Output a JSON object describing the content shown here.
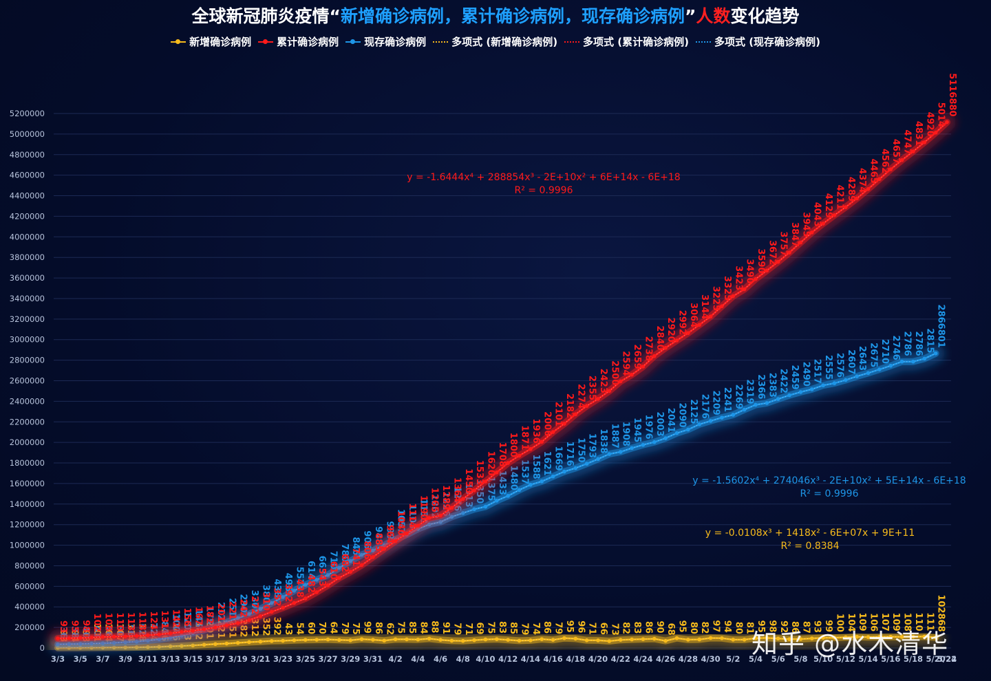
{
  "chart_data": {
    "type": "line",
    "title": {
      "prefix": "全球新冠肺炎疫情“",
      "blue_part": "新增确诊病例，累计确诊病例，现存确诊病例",
      "suffix_quote": "”",
      "red_part": "人数",
      "end": "变化趋势"
    },
    "colors": {
      "new_cases": "#f7bb1c",
      "cumulative": "#ff1a1a",
      "active": "#1e96e8",
      "grid": "#1c2a55",
      "axis_text": "#b8c4dc",
      "background": "#030b26"
    },
    "legend": [
      {
        "label": "新增确诊病例",
        "series": "new",
        "style": "line-marker"
      },
      {
        "label": "累计确诊病例",
        "series": "cumulative",
        "style": "line-marker"
      },
      {
        "label": "现存确诊病例",
        "series": "active",
        "style": "line-marker"
      },
      {
        "label": "多项式 (新增确诊病例)",
        "series": "new",
        "style": "dotted"
      },
      {
        "label": "多项式 (累计确诊病例)",
        "series": "cumulative",
        "style": "dotted"
      },
      {
        "label": "多项式 (现存确诊病例)",
        "series": "active",
        "style": "dotted"
      }
    ],
    "y_axis": {
      "min": 0,
      "max": 5200000,
      "step": 200000,
      "ticks": [
        "0",
        "200000",
        "400000",
        "600000",
        "800000",
        "1000000",
        "1200000",
        "1400000",
        "1600000",
        "1800000",
        "2000000",
        "2200000",
        "2400000",
        "2600000",
        "2800000",
        "3000000",
        "3200000",
        "3400000",
        "3600000",
        "3800000",
        "4000000",
        "4200000",
        "4400000",
        "4600000",
        "4800000",
        "5000000",
        "5200000"
      ]
    },
    "x_axis": {
      "start_date": "3/3",
      "tick_labels": [
        "3/3",
        "3/5",
        "3/7",
        "3/9",
        "3/11",
        "3/13",
        "3/15",
        "3/17",
        "3/19",
        "3/21",
        "3/23",
        "3/25",
        "3/27",
        "3/29",
        "3/31",
        "4/2",
        "4/4",
        "4/6",
        "4/8",
        "4/10",
        "4/12",
        "4/14",
        "4/16",
        "4/18",
        "4/20",
        "4/22",
        "4/24",
        "4/26",
        "4/28",
        "4/30",
        "5/2",
        "5/4",
        "5/6",
        "5/8",
        "5/10",
        "5/12",
        "5/14",
        "5/16",
        "5/18",
        "5/20",
        "5/22",
        "5/24"
      ]
    },
    "series": [
      {
        "name": "累计确诊病例",
        "key": "cumulative",
        "values": [
          93000,
          95000,
          98000,
          102000,
          108000,
          110000,
          113000,
          118000,
          124000,
          131000,
          142000,
          156000,
          167000,
          182000,
          201000,
          221000,
          242000,
          272000,
          310000,
          352000,
          392000,
          438000,
          482000,
          543000,
          610000,
          682000,
          741000,
          806000,
          885000,
          964000,
          1040000,
          1114000,
          1190000,
          1265000,
          1289000,
          1364000,
          1450000,
          1533000,
          1620000,
          1708000,
          1800000,
          1871000,
          1936000,
          2006000,
          2101000,
          2182000,
          2274000,
          2355000,
          2423000,
          2500000,
          2594000,
          2659000,
          2738000,
          2840000,
          2920000,
          2992000,
          3064000,
          3144000,
          3225000,
          3325000,
          3423000,
          3490000,
          3590000,
          3672000,
          3757000,
          3847000,
          3945000,
          4043000,
          4129000,
          4211000,
          4289000,
          4374000,
          4465000,
          4562000,
          4657000,
          4747000,
          4831000,
          4920000,
          5014000,
          5116000
        ]
      },
      {
        "name": "现存确诊病例",
        "key": "active",
        "values": [
          36000,
          38000,
          40000,
          43000,
          46000,
          50000,
          56000,
          62000,
          72000,
          84000,
          100000,
          120000,
          145000,
          175000,
          212000,
          251000,
          290000,
          330000,
          380000,
          438000,
          496000,
          557000,
          614000,
          663000,
          710000,
          780000,
          846000,
          906000,
          948000,
          999000,
          1057000,
          1103000,
          1158000,
          1202000,
          1226000,
          1276000,
          1313000,
          1350000,
          1375000,
          1433000,
          1480000,
          1537000,
          1588000,
          1621000,
          1669000,
          1716000,
          1750000,
          1793000,
          1838000,
          1887000,
          1908000,
          1945000,
          1976000,
          2003000,
          2041000,
          2090000,
          2125000,
          2176000,
          2209000,
          2241000,
          2269000,
          2319000,
          2366000,
          2383000,
          2422000,
          2459000,
          2490000,
          2517000,
          2555000,
          2576000,
          2607000,
          2643000,
          2675000,
          2710000,
          2746000,
          2786000,
          2786000,
          2815000,
          2866000
        ]
      },
      {
        "name": "新增确诊病例",
        "key": "new",
        "values": [
          2000,
          2500,
          2800,
          3400,
          4000,
          4500,
          5500,
          7000,
          9000,
          12000,
          16000,
          20000,
          25000,
          32000,
          38000,
          43000,
          50000,
          57000,
          62000,
          68000,
          70000,
          75000,
          79000,
          80000,
          83000,
          78000,
          75000,
          86000,
          80000,
          72000,
          85000,
          84000,
          82000,
          91000,
          79000,
          71000,
          69000,
          76000,
          83000,
          86000,
          79000,
          71000,
          74000,
          86000,
          79000,
          96000,
          91000,
          75000,
          74000,
          67000,
          79000,
          83000,
          86000,
          90000,
          69000,
          96000,
          81000,
          83000,
          97000,
          95000,
          81000,
          81000,
          95000,
          98000,
          92000,
          86000,
          87000,
          93000,
          99000,
          100000,
          104000,
          109000,
          106000,
          107000,
          109000,
          108000,
          110000,
          111000,
          102868
        ]
      }
    ],
    "point_labels": {
      "cumulative": [
        "93",
        "95",
        "98",
        "102",
        "108",
        "110",
        "113",
        "118",
        "124",
        "131",
        "142",
        "156",
        "167",
        "182",
        "201",
        "221",
        "242",
        "272",
        "310",
        "352",
        "392",
        "438",
        "482",
        "543",
        "610",
        "682",
        "741",
        "806",
        "885",
        "964",
        "1040",
        "1114",
        "1190",
        "1265",
        "1289",
        "1364",
        "1450",
        "1533",
        "1620",
        "1708",
        "1800",
        "1871",
        "1936",
        "2006",
        "2101",
        "2182",
        "2274",
        "2355",
        "2423",
        "2500",
        "2594",
        "2659",
        "2738",
        "2840",
        "2920",
        "2992",
        "3064",
        "3144",
        "3225",
        "3325",
        "3423",
        "3490",
        "3590",
        "3672",
        "3757",
        "3847",
        "3945",
        "4043",
        "4129",
        "4211",
        "4289",
        "4374",
        "4465",
        "4562",
        "4657",
        "4747",
        "4831",
        "4920",
        "5014",
        "5116880"
      ],
      "active": [
        "36",
        "38",
        "40",
        "43",
        "46",
        "50",
        "56",
        "62",
        "72",
        "84",
        "100",
        "120",
        "145",
        "175",
        "212",
        "251",
        "290",
        "330",
        "380",
        "438",
        "496",
        "557",
        "614",
        "663",
        "710",
        "780",
        "846",
        "906",
        "948",
        "999",
        "1057",
        "1103",
        "1158",
        "1202",
        "1226",
        "1276",
        "1313",
        "1350",
        "1375",
        "1433",
        "1480",
        "1537",
        "1588",
        "1621",
        "1669",
        "1716",
        "1750",
        "1793",
        "1838",
        "1887",
        "1908",
        "1945",
        "1976",
        "2003",
        "2041",
        "2090",
        "2125",
        "2176",
        "2209",
        "2241",
        "2269",
        "2319",
        "2366",
        "2383",
        "2422",
        "2459",
        "2490",
        "2517",
        "2555",
        "2576",
        "2607",
        "2643",
        "2675",
        "2710",
        "2746",
        "2786",
        "2786",
        "2815",
        "2866801"
      ],
      "new": [
        "93",
        "94",
        "98",
        "101",
        "104",
        "107",
        "114",
        "118",
        "124",
        "136",
        "146",
        "173",
        "182",
        "201",
        "221",
        "251",
        "282",
        "312",
        "352",
        "392",
        "43",
        "54",
        "60",
        "70",
        "64",
        "79",
        "75",
        "99",
        "86",
        "62",
        "75",
        "85",
        "84",
        "88",
        "91",
        "79",
        "71",
        "69",
        "75",
        "83",
        "85",
        "79",
        "74",
        "86",
        "79",
        "95",
        "96",
        "71",
        "66",
        "73",
        "82",
        "83",
        "86",
        "90",
        "68",
        "95",
        "80",
        "82",
        "97",
        "94",
        "80",
        "81",
        "95",
        "98",
        "92",
        "86",
        "87",
        "93",
        "99",
        "100",
        "104",
        "109",
        "106",
        "107",
        "109",
        "108",
        "110",
        "111",
        "102868"
      ]
    },
    "trendlines": [
      {
        "series": "cumulative",
        "equation": "y = -1.6444x⁴ + 288854x³ - 2E+10x² + 6E+14x - 6E+18",
        "r2": "R² = 0.9996"
      },
      {
        "series": "active",
        "equation": "y = -1.5602x⁴ + 274046x³ - 2E+10x² + 5E+14x - 6E+18",
        "r2": "R² = 0.9996"
      },
      {
        "series": "new",
        "equation": "y = -0.0108x³ + 1418x² - 6E+07x + 9E+11",
        "r2": "R² = 0.8384"
      }
    ],
    "grid": true,
    "legend_position": "top"
  },
  "watermark": "知乎 @水木清华"
}
